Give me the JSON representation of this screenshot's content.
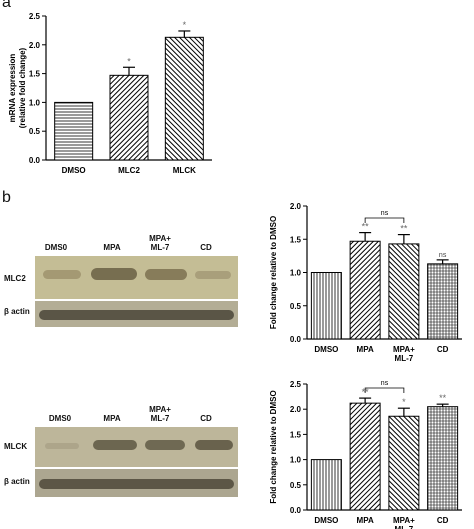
{
  "panels": {
    "a": "a",
    "b": "b"
  },
  "chart_data": [
    {
      "type": "bar",
      "ylabel": "mRNA expression (relative fold change)",
      "ylabel_lines": [
        "mRNA expression",
        "(relative fold change)"
      ],
      "categories": [
        [
          "DMSO"
        ],
        [
          "MLC2"
        ],
        [
          "MLCK"
        ]
      ],
      "values": [
        1.0,
        1.47,
        2.13
      ],
      "errors": [
        0,
        0.14,
        0.11
      ],
      "annotations": [
        "",
        "*",
        "*"
      ],
      "ylim": [
        0,
        2.5
      ],
      "yticks": [
        "0.0",
        "0.5",
        "1.0",
        "1.5",
        "2.0",
        "2.5"
      ],
      "hatch": [
        "horizontal",
        "diagonal-right",
        "diagonal-left"
      ]
    },
    {
      "type": "bar",
      "ylabel": "Fold change relative to DMSO",
      "categories": [
        [
          "DMSO"
        ],
        [
          "MPA"
        ],
        [
          "MPA+",
          "ML-7"
        ],
        [
          "CD"
        ]
      ],
      "values": [
        1.0,
        1.47,
        1.43,
        1.13
      ],
      "errors": [
        0,
        0.13,
        0.14,
        0.06
      ],
      "annotations": [
        "",
        "**",
        "**",
        "ns"
      ],
      "bracket": {
        "from": 1,
        "to": 2,
        "label": "ns"
      },
      "ylim": [
        0,
        2.0
      ],
      "yticks": [
        "0.0",
        "0.5",
        "1.0",
        "1.5",
        "2.0"
      ],
      "hatch": [
        "vertical",
        "diagonal-right",
        "diagonal-left",
        "grid"
      ]
    },
    {
      "type": "bar",
      "ylabel": "Fold change relative to DMSO",
      "categories": [
        [
          "DMSO"
        ],
        [
          "MPA"
        ],
        [
          "MPA+",
          "ML-7"
        ],
        [
          "CD"
        ]
      ],
      "values": [
        1.0,
        2.12,
        1.86,
        2.05
      ],
      "errors": [
        0,
        0.1,
        0.16,
        0.05
      ],
      "annotations": [
        "",
        "**",
        "*",
        "**"
      ],
      "bracket": {
        "from": 1,
        "to": 2,
        "label": "ns"
      },
      "ylim": [
        0,
        2.5
      ],
      "yticks": [
        "0.0",
        "0.5",
        "1.0",
        "1.5",
        "2.0",
        "2.5"
      ],
      "hatch": [
        "vertical",
        "diagonal-right",
        "diagonal-left",
        "grid"
      ]
    }
  ],
  "blots": [
    {
      "lanes": [
        [
          "DMS0"
        ],
        [
          "MPA"
        ],
        [
          "MPA+",
          "ML-7"
        ],
        [
          "CD"
        ]
      ],
      "rows": [
        "MLC2",
        "β actin"
      ]
    },
    {
      "lanes": [
        [
          "DMS0"
        ],
        [
          "MPA"
        ],
        [
          "MPA+",
          "ML-7"
        ],
        [
          "CD"
        ]
      ],
      "rows": [
        "MLCK",
        "β actin"
      ]
    }
  ]
}
